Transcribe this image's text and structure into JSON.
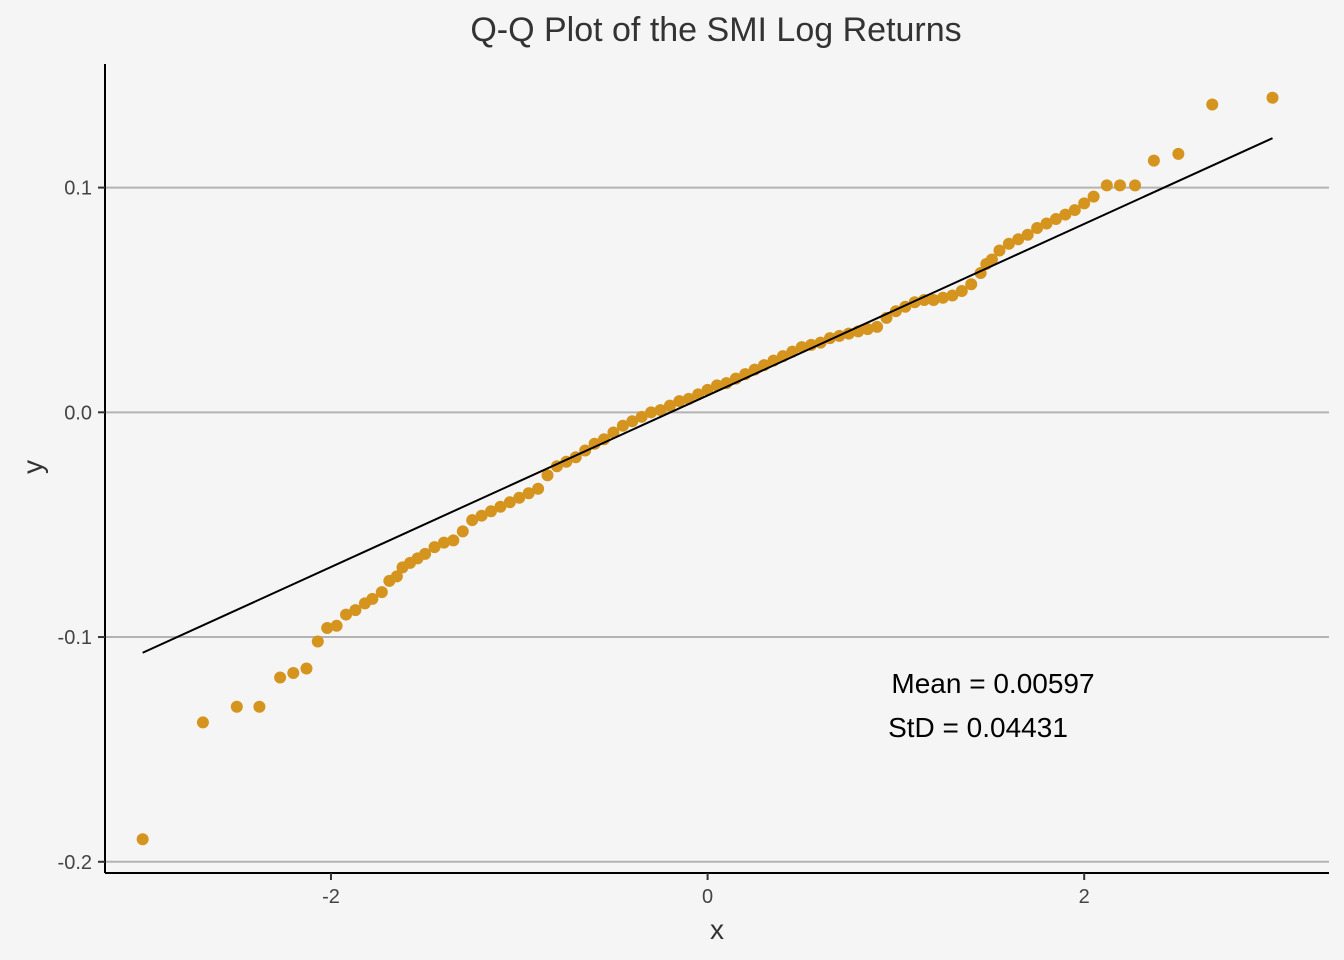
{
  "chart_data": {
    "type": "scatter",
    "title": "Q-Q Plot of the SMI Log Returns",
    "xlabel": "x",
    "ylabel": "y",
    "xlim": [
      -3.2,
      3.3
    ],
    "ylim": [
      -0.205,
      0.155
    ],
    "x_ticks": [
      -2,
      0,
      2
    ],
    "x_tick_labels": [
      "-2",
      "0",
      "2"
    ],
    "y_ticks": [
      -0.2,
      -0.1,
      0.0,
      0.1
    ],
    "y_tick_labels": [
      "-0.2",
      "-0.1",
      "0.0",
      "0.1"
    ],
    "grid": "horizontal major lines",
    "legend": "none",
    "point_color": "#d4941e",
    "line_color": "#000000",
    "background_color": "#f5f5f5",
    "grid_color": "#b3b3b3",
    "reference_line": {
      "x": [
        -3.0,
        3.0
      ],
      "y": [
        -0.107,
        0.122
      ]
    },
    "annotations": [
      "Mean = 0.00597",
      "StD = 0.04431"
    ],
    "points": {
      "x": [
        -3.0,
        -2.68,
        -2.5,
        -2.38,
        -2.27,
        -2.2,
        -2.13,
        -2.07,
        -2.02,
        -1.97,
        -1.92,
        -1.87,
        -1.82,
        -1.78,
        -1.73,
        -1.69,
        -1.65,
        -1.62,
        -1.58,
        -1.54,
        -1.5,
        -1.45,
        -1.4,
        -1.35,
        -1.3,
        -1.25,
        -1.2,
        -1.15,
        -1.1,
        -1.05,
        -1.0,
        -0.95,
        -0.9,
        -0.85,
        -0.8,
        -0.75,
        -0.7,
        -0.65,
        -0.6,
        -0.55,
        -0.5,
        -0.45,
        -0.4,
        -0.35,
        -0.3,
        -0.25,
        -0.2,
        -0.15,
        -0.1,
        -0.05,
        0.0,
        0.05,
        0.1,
        0.15,
        0.2,
        0.25,
        0.3,
        0.35,
        0.4,
        0.45,
        0.5,
        0.55,
        0.6,
        0.65,
        0.7,
        0.75,
        0.8,
        0.85,
        0.9,
        0.95,
        1.0,
        1.05,
        1.1,
        1.15,
        1.2,
        1.25,
        1.3,
        1.35,
        1.4,
        1.45,
        1.48,
        1.51,
        1.55,
        1.6,
        1.65,
        1.7,
        1.75,
        1.8,
        1.85,
        1.9,
        1.95,
        2.0,
        2.05,
        2.12,
        2.19,
        2.27,
        2.37,
        2.5,
        2.68,
        3.0
      ],
      "y": [
        -0.19,
        -0.138,
        -0.131,
        -0.131,
        -0.118,
        -0.116,
        -0.114,
        -0.102,
        -0.096,
        -0.095,
        -0.09,
        -0.088,
        -0.085,
        -0.083,
        -0.08,
        -0.075,
        -0.073,
        -0.069,
        -0.067,
        -0.065,
        -0.063,
        -0.06,
        -0.058,
        -0.057,
        -0.053,
        -0.048,
        -0.046,
        -0.044,
        -0.042,
        -0.04,
        -0.038,
        -0.036,
        -0.034,
        -0.028,
        -0.024,
        -0.022,
        -0.02,
        -0.017,
        -0.014,
        -0.012,
        -0.009,
        -0.006,
        -0.004,
        -0.002,
        0.0,
        0.001,
        0.003,
        0.005,
        0.006,
        0.008,
        0.01,
        0.012,
        0.013,
        0.015,
        0.017,
        0.019,
        0.021,
        0.023,
        0.025,
        0.027,
        0.029,
        0.03,
        0.031,
        0.033,
        0.034,
        0.035,
        0.036,
        0.037,
        0.038,
        0.042,
        0.045,
        0.047,
        0.049,
        0.05,
        0.05,
        0.051,
        0.052,
        0.054,
        0.057,
        0.062,
        0.066,
        0.068,
        0.072,
        0.075,
        0.077,
        0.079,
        0.082,
        0.084,
        0.086,
        0.088,
        0.09,
        0.093,
        0.096,
        0.101,
        0.101,
        0.101,
        0.112,
        0.115,
        0.137,
        0.14
      ]
    }
  }
}
